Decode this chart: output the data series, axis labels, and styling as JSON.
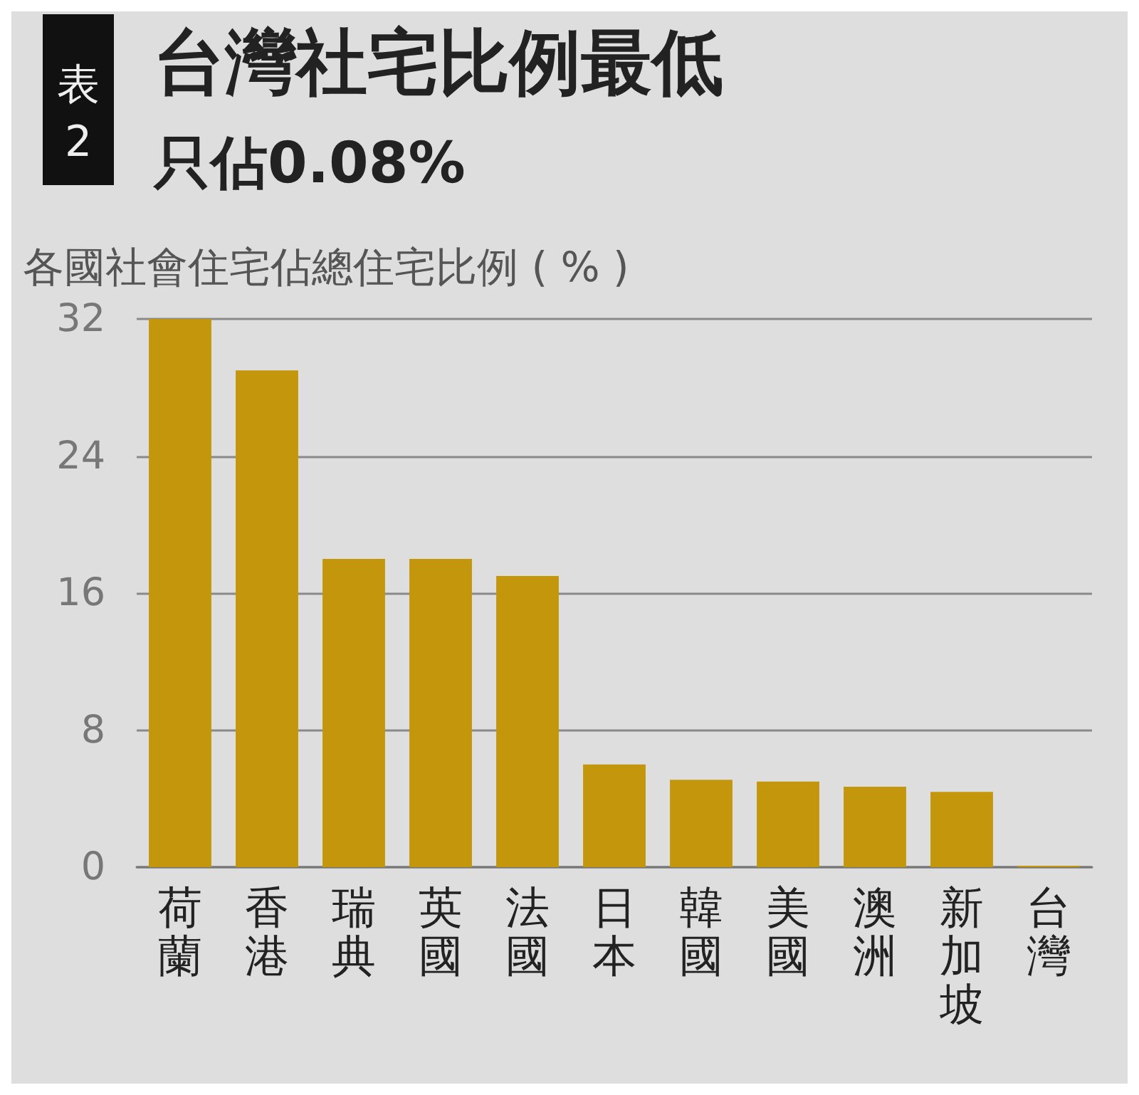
{
  "chart_data": {
    "type": "bar",
    "title": "台灣社宅比例最低",
    "subtitle": "只佔0.08%",
    "ylabel": "各國社會住宅佔總住宅比例 ( % )",
    "annotations": [
      "表2"
    ],
    "categories": [
      "荷蘭",
      "香港",
      "瑞典",
      "英國",
      "法國",
      "日本",
      "韓國",
      "美國",
      "澳洲",
      "新加坡",
      "台灣"
    ],
    "values": [
      32,
      29,
      18,
      18,
      17,
      6,
      5.1,
      5,
      4.7,
      4.4,
      0.08
    ],
    "color": "#c4960c",
    "ylim": [
      0,
      32
    ],
    "yticks": [
      0,
      8,
      16,
      24,
      32
    ],
    "grid": "y"
  }
}
